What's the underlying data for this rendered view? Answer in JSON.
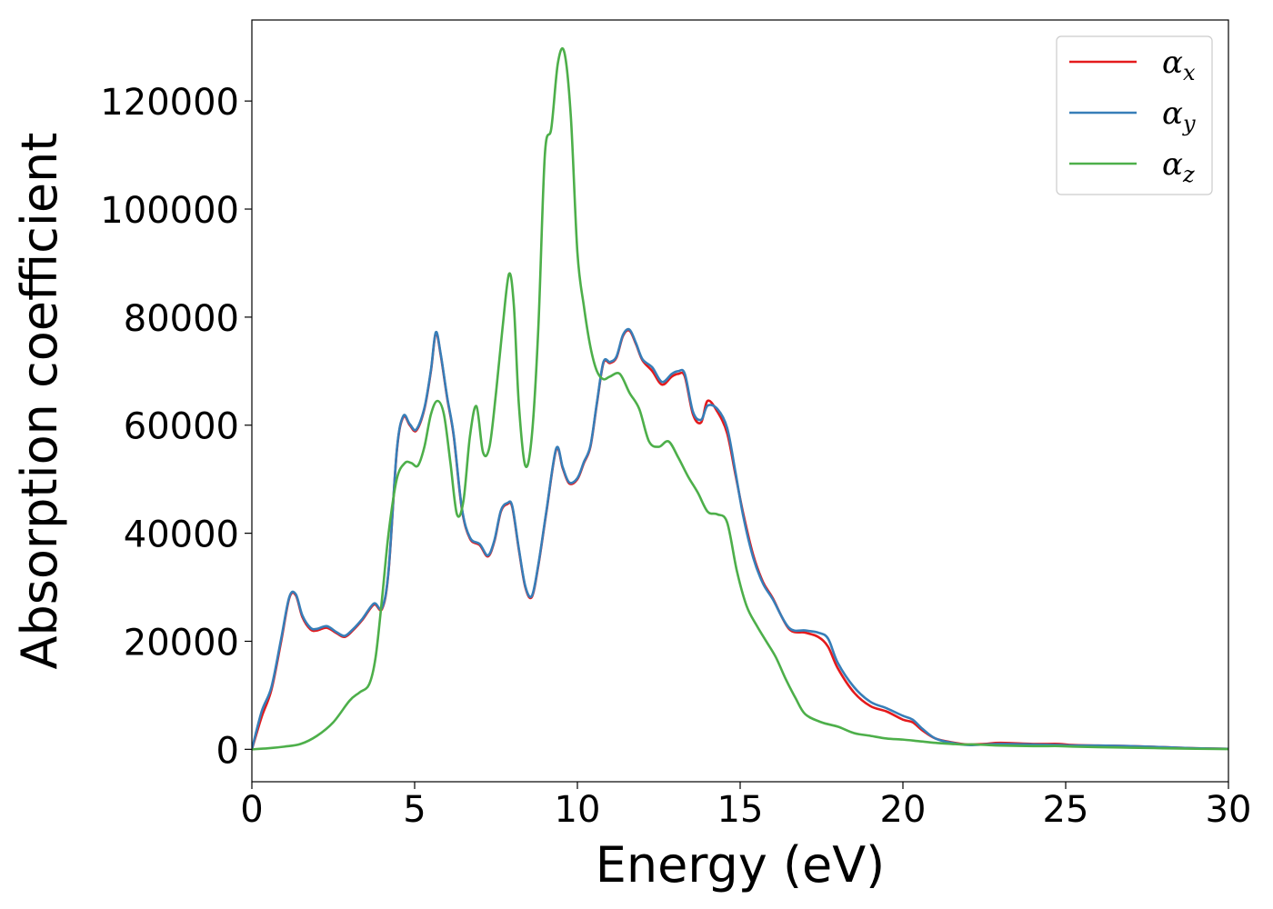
{
  "chart_data": {
    "type": "line",
    "xlabel": "Energy (eV)",
    "ylabel": "Absorption coefficient",
    "xlim": [
      0,
      30
    ],
    "ylim": [
      -6000,
      135000
    ],
    "xticks": [
      0,
      5,
      10,
      15,
      20,
      25,
      30
    ],
    "yticks": [
      0,
      20000,
      40000,
      60000,
      80000,
      100000,
      120000
    ],
    "xtick_labels": [
      "0",
      "5",
      "10",
      "15",
      "20",
      "25",
      "30"
    ],
    "ytick_labels": [
      "0",
      "20000",
      "40000",
      "60000",
      "80000",
      "100000",
      "120000"
    ],
    "grid": false,
    "legend_position": "top-right",
    "series": [
      {
        "name": "αx",
        "symbol": "α",
        "subscript": "x",
        "color": "#e41a1c",
        "x": [
          0,
          0.3,
          0.6,
          0.9,
          1.15,
          1.35,
          1.55,
          1.8,
          2.0,
          2.3,
          2.6,
          2.85,
          3.1,
          3.4,
          3.75,
          4.0,
          4.2,
          4.45,
          4.65,
          4.85,
          5.05,
          5.3,
          5.5,
          5.65,
          5.8,
          6.0,
          6.2,
          6.45,
          6.7,
          7.0,
          7.25,
          7.45,
          7.65,
          7.85,
          8.0,
          8.2,
          8.4,
          8.6,
          8.8,
          9.05,
          9.35,
          9.55,
          9.75,
          10.0,
          10.2,
          10.4,
          10.6,
          10.8,
          11.0,
          11.2,
          11.4,
          11.6,
          11.8,
          12.0,
          12.3,
          12.6,
          12.9,
          13.1,
          13.3,
          13.55,
          13.8,
          14.0,
          14.3,
          14.6,
          14.85,
          15.1,
          15.4,
          15.7,
          16.0,
          16.5,
          17.0,
          17.4,
          17.7,
          18.0,
          18.5,
          19.0,
          19.5,
          20.0,
          20.3,
          20.6,
          21.0,
          21.5,
          22.0,
          22.5,
          23.0,
          24.0,
          24.8,
          25.2,
          26.0,
          27.0,
          28.0,
          29.0,
          30.0
        ],
        "y": [
          0,
          6000,
          11000,
          20000,
          28000,
          28500,
          24500,
          22200,
          22000,
          22500,
          21500,
          20800,
          22000,
          24000,
          26800,
          26000,
          33000,
          55000,
          61500,
          60000,
          59000,
          63000,
          70000,
          77000,
          73000,
          65000,
          58000,
          44500,
          39000,
          37800,
          35700,
          38500,
          44000,
          45400,
          44800,
          37000,
          30000,
          28200,
          34000,
          44000,
          55500,
          52000,
          49200,
          50000,
          53000,
          56000,
          64000,
          71500,
          71500,
          72500,
          76500,
          77500,
          75000,
          72000,
          70000,
          67500,
          69000,
          69500,
          69000,
          62000,
          60500,
          64500,
          62500,
          58500,
          51000,
          43500,
          36000,
          31000,
          28000,
          22300,
          21600,
          20800,
          19000,
          15000,
          10500,
          8000,
          7000,
          5500,
          5000,
          3500,
          2000,
          1300,
          900,
          1000,
          1200,
          1000,
          1000,
          800,
          700,
          600,
          400,
          200,
          100
        ]
      },
      {
        "name": "αy",
        "symbol": "α",
        "subscript": "y",
        "color": "#377eb8",
        "x": [
          0,
          0.3,
          0.6,
          0.9,
          1.15,
          1.35,
          1.55,
          1.8,
          2.0,
          2.3,
          2.6,
          2.85,
          3.1,
          3.4,
          3.75,
          4.0,
          4.2,
          4.45,
          4.65,
          4.85,
          5.05,
          5.3,
          5.5,
          5.65,
          5.8,
          6.0,
          6.2,
          6.45,
          6.7,
          7.0,
          7.25,
          7.45,
          7.65,
          7.85,
          8.0,
          8.2,
          8.4,
          8.6,
          8.8,
          9.05,
          9.35,
          9.55,
          9.75,
          10.0,
          10.2,
          10.4,
          10.6,
          10.8,
          11.0,
          11.2,
          11.4,
          11.6,
          11.8,
          12.0,
          12.3,
          12.6,
          12.9,
          13.1,
          13.3,
          13.55,
          13.8,
          14.0,
          14.3,
          14.6,
          14.85,
          15.1,
          15.4,
          15.7,
          16.0,
          16.5,
          17.0,
          17.4,
          17.7,
          18.0,
          18.5,
          19.0,
          19.5,
          20.0,
          20.3,
          20.6,
          21.0,
          21.5,
          22.0,
          22.5,
          23.0,
          24.0,
          24.8,
          25.2,
          26.0,
          27.0,
          28.0,
          29.0,
          30.0
        ],
        "y": [
          0,
          7000,
          11500,
          20500,
          28200,
          28700,
          24800,
          22500,
          22300,
          22800,
          21700,
          21000,
          22200,
          24200,
          27000,
          26200,
          33200,
          55200,
          61700,
          60200,
          59200,
          63200,
          70200,
          77200,
          73200,
          65200,
          58200,
          44700,
          39200,
          38000,
          35900,
          38700,
          44200,
          45600,
          45000,
          37200,
          30200,
          28400,
          34200,
          44200,
          55700,
          52200,
          49400,
          50200,
          53200,
          56200,
          64200,
          71700,
          71700,
          72700,
          76700,
          77700,
          75200,
          72200,
          70700,
          68000,
          69500,
          70000,
          69500,
          62500,
          61000,
          63600,
          63000,
          59500,
          51500,
          43000,
          35500,
          30700,
          27800,
          22500,
          22000,
          21600,
          20500,
          16000,
          11500,
          8800,
          7600,
          6200,
          5500,
          3800,
          2000,
          1200,
          800,
          900,
          1000,
          900,
          800,
          700,
          700,
          600,
          400,
          200,
          100
        ]
      },
      {
        "name": "αz",
        "symbol": "α",
        "subscript": "z",
        "color": "#4daf4a",
        "x": [
          0,
          0.5,
          1.0,
          1.5,
          2.0,
          2.5,
          3.0,
          3.3,
          3.6,
          3.8,
          4.0,
          4.2,
          4.45,
          4.7,
          4.9,
          5.1,
          5.3,
          5.5,
          5.7,
          5.9,
          6.1,
          6.3,
          6.5,
          6.7,
          6.9,
          7.1,
          7.3,
          7.5,
          7.7,
          7.9,
          8.05,
          8.2,
          8.4,
          8.6,
          8.8,
          9.0,
          9.2,
          9.4,
          9.6,
          9.8,
          10.0,
          10.2,
          10.4,
          10.6,
          10.8,
          11.0,
          11.3,
          11.6,
          11.9,
          12.2,
          12.5,
          12.8,
          13.1,
          13.4,
          13.7,
          14.0,
          14.3,
          14.6,
          14.9,
          15.2,
          15.5,
          15.8,
          16.1,
          16.4,
          16.7,
          17.0,
          17.5,
          18.0,
          18.5,
          19.0,
          19.5,
          20.0,
          20.5,
          21.0,
          21.5,
          21.8,
          22.2,
          22.6,
          23.0,
          24.0,
          24.8,
          25.2,
          26.0,
          27.0,
          28.0,
          29.0,
          30.0
        ],
        "y": [
          0,
          200,
          500,
          1000,
          2500,
          5000,
          9000,
          10500,
          12000,
          17000,
          28000,
          40000,
          50000,
          53000,
          53000,
          52500,
          56000,
          62000,
          64500,
          62000,
          53000,
          43500,
          46000,
          58000,
          63500,
          55000,
          56000,
          66000,
          78000,
          88000,
          82000,
          64000,
          52500,
          58000,
          78000,
          110000,
          115000,
          127000,
          129000,
          117000,
          92000,
          82000,
          74500,
          70000,
          68500,
          69000,
          69500,
          66000,
          63000,
          57000,
          56000,
          57000,
          54000,
          50500,
          47500,
          44000,
          43500,
          42000,
          33000,
          26500,
          23000,
          20000,
          17000,
          13000,
          9500,
          6500,
          5000,
          4200,
          3000,
          2500,
          2000,
          1800,
          1500,
          1200,
          1000,
          900,
          900,
          800,
          700,
          600,
          600,
          500,
          400,
          300,
          200,
          100,
          50
        ]
      }
    ]
  }
}
